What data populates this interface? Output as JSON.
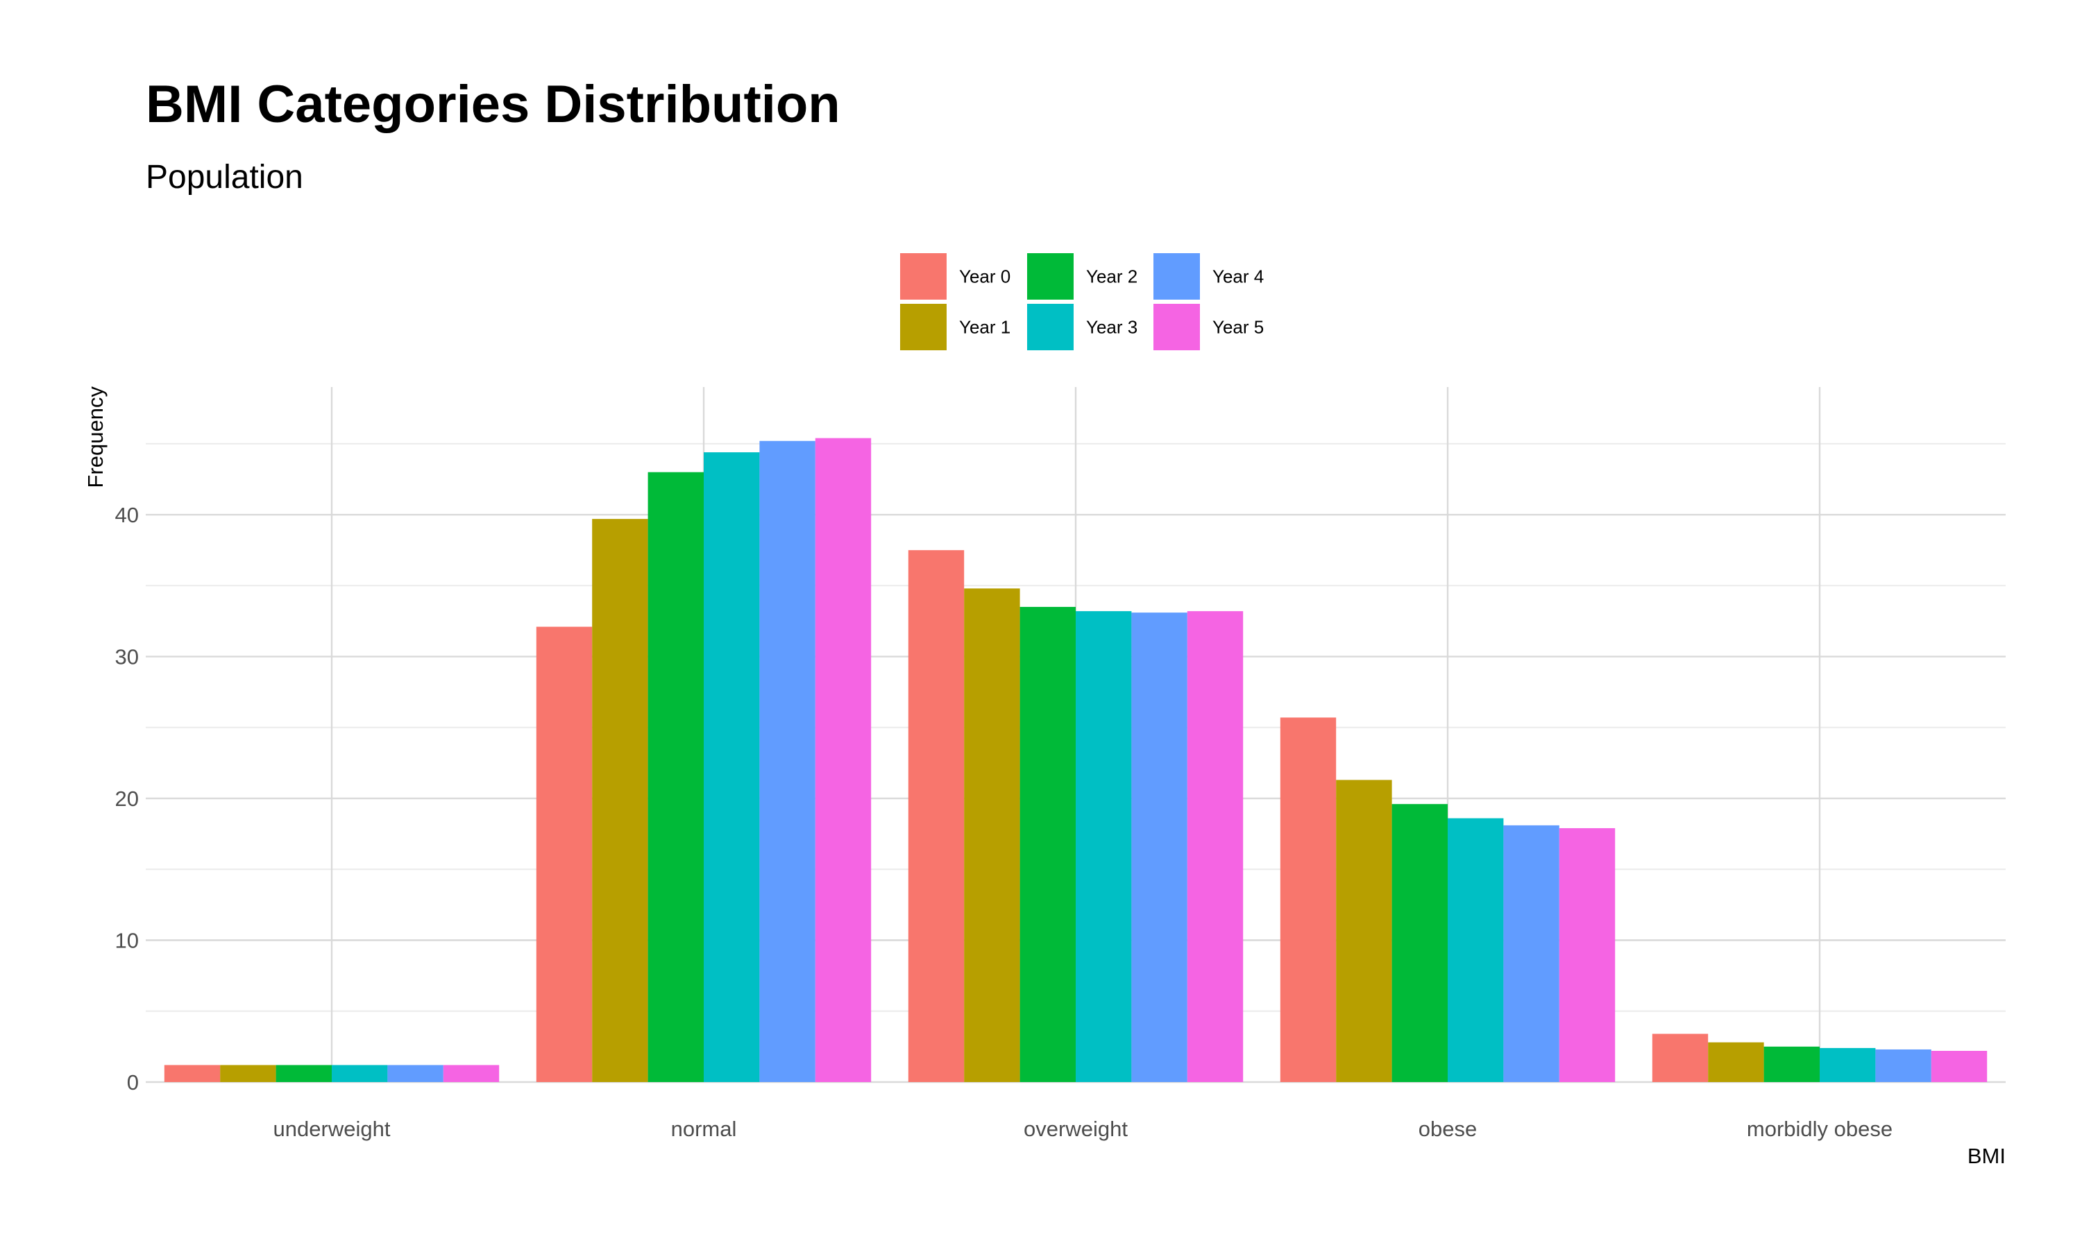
{
  "chart_data": {
    "type": "bar",
    "title": "BMI Categories Distribution",
    "subtitle": "Population",
    "xlabel": "BMI",
    "ylabel": "Frequency",
    "ylim": [
      0,
      49
    ],
    "y_ticks": [
      0,
      10,
      20,
      30,
      40
    ],
    "grid": true,
    "legend_position": "top",
    "categories": [
      "underweight",
      "normal",
      "overweight",
      "obese",
      "morbidly obese"
    ],
    "series": [
      {
        "name": "Year 0",
        "color": "#F8766D",
        "values": [
          1.2,
          32.1,
          37.5,
          25.7,
          3.4
        ]
      },
      {
        "name": "Year 1",
        "color": "#B79F00",
        "values": [
          1.2,
          39.7,
          34.8,
          21.3,
          2.8
        ]
      },
      {
        "name": "Year 2",
        "color": "#00BA38",
        "values": [
          1.2,
          43.0,
          33.5,
          19.6,
          2.5
        ]
      },
      {
        "name": "Year 3",
        "color": "#00BFC4",
        "values": [
          1.2,
          44.4,
          33.2,
          18.6,
          2.4
        ]
      },
      {
        "name": "Year 4",
        "color": "#619CFF",
        "values": [
          1.2,
          45.2,
          33.1,
          18.1,
          2.3
        ]
      },
      {
        "name": "Year 5",
        "color": "#F564E3",
        "values": [
          1.2,
          45.4,
          33.2,
          17.9,
          2.2
        ]
      }
    ]
  }
}
